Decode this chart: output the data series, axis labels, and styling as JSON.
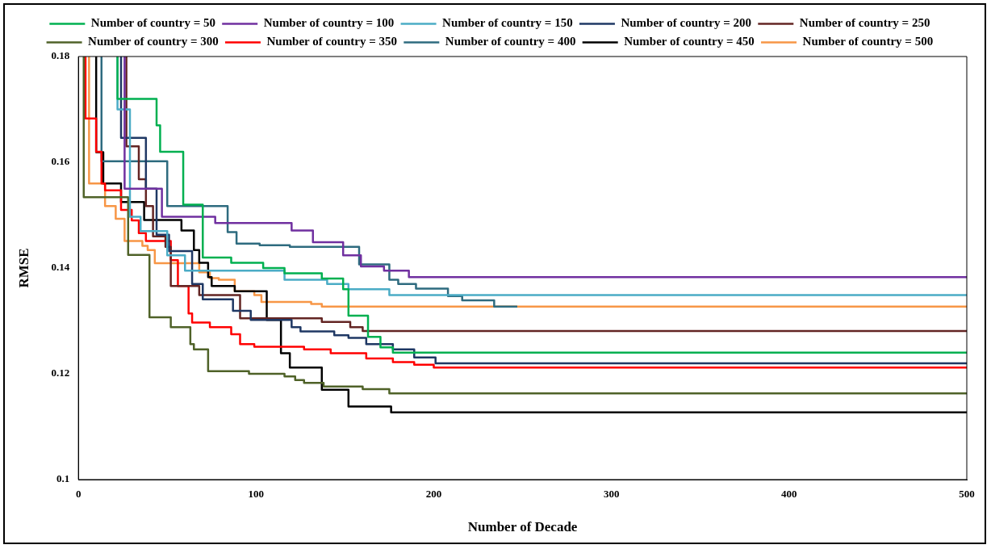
{
  "chart_data": {
    "type": "step",
    "xlabel": "Number of Decade",
    "ylabel": "RMSE",
    "xlim": [
      0,
      500
    ],
    "xticks": [
      0,
      100,
      200,
      300,
      400,
      500
    ],
    "ylim": [
      0.1,
      0.18
    ],
    "yticks": [
      0.1,
      0.12,
      0.14,
      0.16,
      0.18
    ],
    "grid": false,
    "legend": "top",
    "marker": "none",
    "line_style": "solid",
    "series": [
      {
        "name": "Number of country = 50",
        "color": "#00b050",
        "x": [
          22,
          22,
          44,
          46,
          59,
          70,
          86,
          104,
          116,
          137,
          149,
          152,
          163,
          170,
          177,
          191,
          500
        ],
        "values": [
          0.18,
          0.174,
          0.172,
          0.167,
          0.162,
          0.152,
          0.142,
          0.141,
          0.14,
          0.139,
          0.138,
          0.136,
          0.131,
          0.127,
          0.125,
          0.124,
          0.124
        ]
      },
      {
        "name": "Number of country = 100",
        "color": "#7030a0",
        "x": [
          26,
          26,
          47,
          77,
          120,
          132,
          149,
          159,
          172,
          186,
          198,
          500
        ],
        "values": [
          0.18,
          0.1725,
          0.155,
          0.1497,
          0.1485,
          0.1471,
          0.1449,
          0.1424,
          0.1403,
          0.1395,
          0.1383,
          0.1383
        ]
      },
      {
        "name": "Number of country = 150",
        "color": "#4bacc6",
        "x": [
          22,
          22,
          29,
          29,
          35,
          50,
          60,
          116,
          140,
          152,
          175,
          197,
          500
        ],
        "values": [
          0.18,
          0.17,
          0.17,
          0.156,
          0.1497,
          0.147,
          0.1424,
          0.1395,
          0.1378,
          0.137,
          0.136,
          0.1349,
          0.1349
        ]
      },
      {
        "name": "Number of country = 200",
        "color": "#1f3864",
        "x": [
          24,
          24,
          38,
          44,
          51,
          64,
          70,
          87,
          97,
          120,
          125,
          144,
          152,
          162,
          177,
          189,
          201,
          237,
          500
        ],
        "values": [
          0.18,
          0.1675,
          0.1646,
          0.155,
          0.1463,
          0.1432,
          0.137,
          0.1341,
          0.1319,
          0.1302,
          0.1288,
          0.128,
          0.1273,
          0.1268,
          0.1256,
          0.1246,
          0.1231,
          0.122,
          0.122
        ]
      },
      {
        "name": "Number of country = 250",
        "color": "#632523",
        "x": [
          27,
          27,
          34,
          38,
          42,
          49,
          52,
          68,
          91,
          137,
          153,
          160,
          194,
          500
        ],
        "values": [
          0.18,
          0.175,
          0.163,
          0.1568,
          0.1517,
          0.146,
          0.144,
          0.1366,
          0.1349,
          0.1305,
          0.1298,
          0.1288,
          0.1281,
          0.1281
        ]
      },
      {
        "name": "Number of country = 300",
        "color": "#4f6228",
        "x": [
          3,
          3,
          28,
          40,
          52,
          63,
          65,
          73,
          96,
          116,
          122,
          127,
          138,
          160,
          175,
          180,
          500
        ],
        "values": [
          0.18,
          0.1544,
          0.1534,
          0.1425,
          0.1307,
          0.1288,
          0.1256,
          0.1246,
          0.1205,
          0.12,
          0.1195,
          0.1188,
          0.1183,
          0.1176,
          0.1171,
          0.1163,
          0.1163
        ]
      },
      {
        "name": "Number of country = 350",
        "color": "#ff0000",
        "x": [
          4,
          4,
          10,
          13,
          15,
          24,
          30,
          34,
          38,
          52,
          56,
          62,
          64,
          74,
          86,
          91,
          99,
          127,
          142,
          162,
          177,
          189,
          200,
          208,
          237,
          500
        ],
        "values": [
          0.18,
          0.1712,
          0.1683,
          0.162,
          0.156,
          0.1547,
          0.151,
          0.149,
          0.1466,
          0.1451,
          0.1415,
          0.1366,
          0.1314,
          0.1297,
          0.1288,
          0.1275,
          0.1256,
          0.1251,
          0.1246,
          0.1239,
          0.1229,
          0.1222,
          0.1217,
          0.1212,
          0.1212,
          0.1212
        ]
      },
      {
        "name": "Number of country = 400",
        "color": "#2e6b7f",
        "x": [
          13,
          13,
          50,
          84,
          89,
          102,
          119,
          158,
          175,
          180,
          190,
          208,
          216,
          234,
          247
        ],
        "values": [
          0.18,
          0.1624,
          0.1602,
          0.1517,
          0.1468,
          0.1446,
          0.1443,
          0.144,
          0.1407,
          0.1378,
          0.137,
          0.1361,
          0.1347,
          0.1339,
          0.1327
        ]
      },
      {
        "name": "Number of country = 450",
        "color": "#000000",
        "x": [
          10,
          10,
          14,
          24,
          37,
          58,
          65,
          68,
          73,
          75,
          88,
          106,
          114,
          119,
          137,
          152,
          176,
          193,
          500
        ],
        "values": [
          0.18,
          0.1646,
          0.1619,
          0.156,
          0.1525,
          0.1491,
          0.1471,
          0.1434,
          0.141,
          0.1383,
          0.1366,
          0.1356,
          0.1302,
          0.1239,
          0.1212,
          0.117,
          0.1138,
          0.1127,
          0.1127
        ]
      },
      {
        "name": "Number of country = 500",
        "color": "#f79646",
        "x": [
          6,
          6,
          15,
          21,
          26,
          36,
          39,
          43,
          68,
          74,
          79,
          88,
          99,
          103,
          131,
          137,
          163,
          500
        ],
        "values": [
          0.18,
          0.1747,
          0.156,
          0.1517,
          0.1493,
          0.1451,
          0.1442,
          0.1434,
          0.1409,
          0.1392,
          0.1381,
          0.1378,
          0.1356,
          0.1349,
          0.1336,
          0.1332,
          0.1327,
          0.1327
        ]
      }
    ]
  }
}
